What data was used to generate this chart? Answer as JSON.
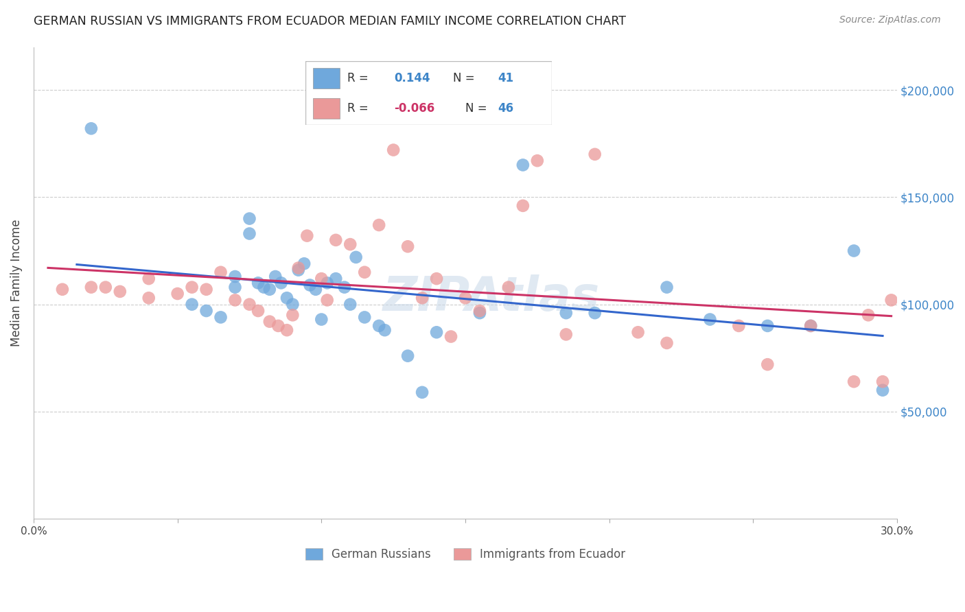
{
  "title": "GERMAN RUSSIAN VS IMMIGRANTS FROM ECUADOR MEDIAN FAMILY INCOME CORRELATION CHART",
  "source": "Source: ZipAtlas.com",
  "ylabel": "Median Family Income",
  "xlim": [
    0.0,
    0.3
  ],
  "ylim": [
    0,
    220000
  ],
  "yticks": [
    0,
    50000,
    100000,
    150000,
    200000
  ],
  "ytick_labels": [
    "",
    "$50,000",
    "$100,000",
    "$150,000",
    "$200,000"
  ],
  "xticks": [
    0.0,
    0.05,
    0.1,
    0.15,
    0.2,
    0.25,
    0.3
  ],
  "xtick_labels": [
    "0.0%",
    "",
    "",
    "",
    "",
    "",
    "30.0%"
  ],
  "blue_color": "#6fa8dc",
  "pink_color": "#ea9999",
  "blue_line_color": "#3366cc",
  "pink_line_color": "#cc3366",
  "watermark": "ZIPAtlas",
  "blue_scatter_x": [
    0.02,
    0.055,
    0.06,
    0.065,
    0.07,
    0.07,
    0.075,
    0.075,
    0.078,
    0.08,
    0.082,
    0.084,
    0.086,
    0.088,
    0.09,
    0.092,
    0.094,
    0.096,
    0.098,
    0.1,
    0.102,
    0.105,
    0.108,
    0.11,
    0.112,
    0.115,
    0.12,
    0.122,
    0.13,
    0.135,
    0.14,
    0.155,
    0.17,
    0.185,
    0.195,
    0.22,
    0.235,
    0.255,
    0.27,
    0.285,
    0.295
  ],
  "blue_scatter_y": [
    182000,
    100000,
    97000,
    94000,
    113000,
    108000,
    140000,
    133000,
    110000,
    108000,
    107000,
    113000,
    110000,
    103000,
    100000,
    116000,
    119000,
    109000,
    107000,
    93000,
    110000,
    112000,
    108000,
    100000,
    122000,
    94000,
    90000,
    88000,
    76000,
    59000,
    87000,
    96000,
    165000,
    96000,
    96000,
    108000,
    93000,
    90000,
    90000,
    125000,
    60000
  ],
  "pink_scatter_x": [
    0.01,
    0.02,
    0.025,
    0.03,
    0.04,
    0.04,
    0.05,
    0.055,
    0.06,
    0.065,
    0.07,
    0.075,
    0.078,
    0.082,
    0.085,
    0.088,
    0.09,
    0.092,
    0.095,
    0.1,
    0.102,
    0.105,
    0.11,
    0.115,
    0.12,
    0.125,
    0.13,
    0.135,
    0.14,
    0.145,
    0.15,
    0.155,
    0.165,
    0.17,
    0.175,
    0.185,
    0.195,
    0.21,
    0.22,
    0.245,
    0.255,
    0.27,
    0.285,
    0.29,
    0.295,
    0.298
  ],
  "pink_scatter_y": [
    107000,
    108000,
    108000,
    106000,
    112000,
    103000,
    105000,
    108000,
    107000,
    115000,
    102000,
    100000,
    97000,
    92000,
    90000,
    88000,
    95000,
    117000,
    132000,
    112000,
    102000,
    130000,
    128000,
    115000,
    137000,
    172000,
    127000,
    103000,
    112000,
    85000,
    103000,
    97000,
    108000,
    146000,
    167000,
    86000,
    170000,
    87000,
    82000,
    90000,
    72000,
    90000,
    64000,
    95000,
    64000,
    102000
  ]
}
